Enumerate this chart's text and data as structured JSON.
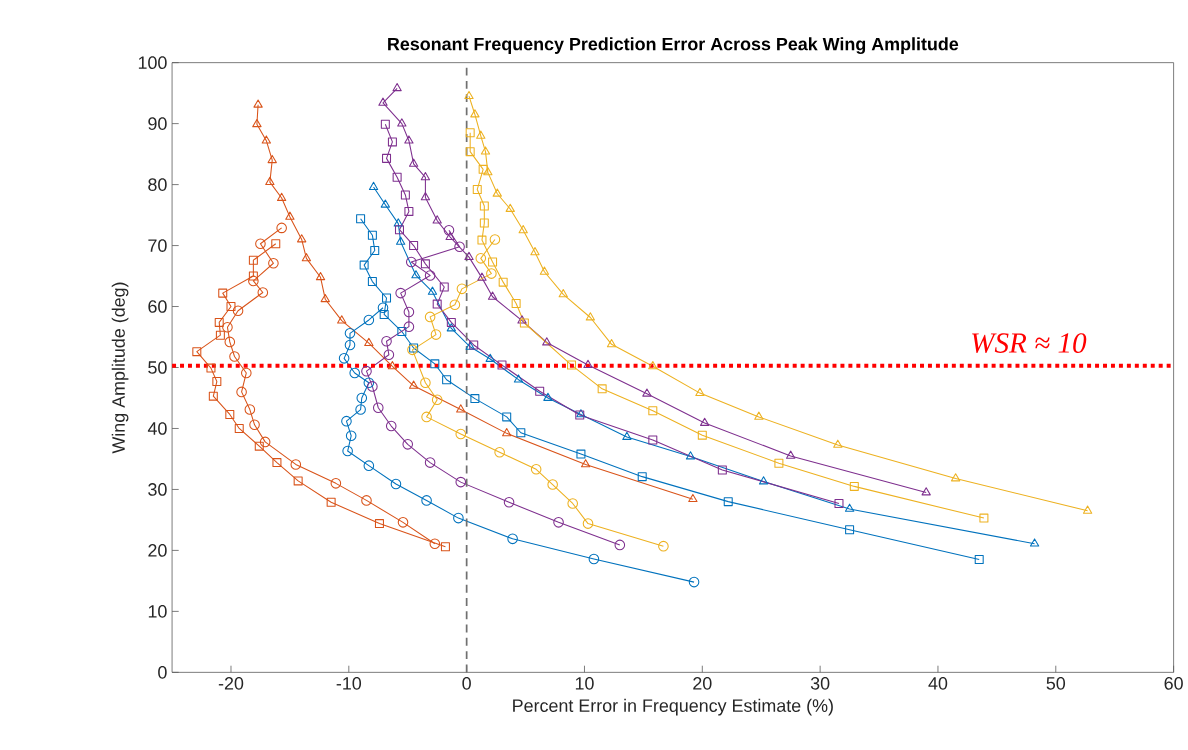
{
  "chart_data": {
    "type": "line",
    "title": "Resonant Frequency Prediction Error Across Peak Wing Amplitude",
    "xlabel": "Percent Error in Frequency Estimate (%)",
    "ylabel": "Wing Amplitude (deg)",
    "xlim": [
      -25,
      60
    ],
    "ylim": [
      0,
      100
    ],
    "xticks": [
      -20,
      -10,
      0,
      10,
      20,
      30,
      40,
      50,
      60
    ],
    "yticks": [
      0,
      10,
      20,
      30,
      40,
      50,
      60,
      70,
      80,
      90,
      100
    ],
    "series": [
      {
        "color": "#D95319",
        "marker": "triangle",
        "x": [
          -17.7,
          -17.8,
          -17.0,
          -16.5,
          -16.7,
          -15.7,
          -15.0,
          -14.0,
          -13.6,
          -12.4,
          -12.0,
          -10.6,
          -8.3,
          -6.3,
          -4.5,
          -0.5,
          3.4,
          10.1,
          19.2
        ],
        "values": [
          93.1,
          89.9,
          87.2,
          84.0,
          80.4,
          77.8,
          74.7,
          71.0,
          67.9,
          64.8,
          61.2,
          57.7,
          54.0,
          50.2,
          47.0,
          43.1,
          39.2,
          34.1,
          28.4
        ]
      },
      {
        "color": "#D95319",
        "marker": "square",
        "x": [
          -16.2,
          -18.1,
          -18.1,
          -20.7,
          -20.0,
          -21.0,
          -20.9,
          -22.9,
          -21.7,
          -21.2,
          -21.5,
          -20.1,
          -19.3,
          -17.6,
          -16.1,
          -14.3,
          -11.5,
          -7.4,
          -1.8
        ],
        "values": [
          70.3,
          67.6,
          65.0,
          62.2,
          60.0,
          57.4,
          55.3,
          52.6,
          49.9,
          47.7,
          45.3,
          42.3,
          40.0,
          37.1,
          34.4,
          31.4,
          27.9,
          24.4,
          20.6
        ]
      },
      {
        "color": "#D95319",
        "marker": "circle",
        "x": [
          -15.7,
          -17.5,
          -16.4,
          -18.1,
          -17.3,
          -19.4,
          -20.3,
          -20.1,
          -19.7,
          -18.7,
          -19.1,
          -18.4,
          -18.0,
          -17.1,
          -14.5,
          -11.1,
          -8.5,
          -5.4,
          -2.7
        ],
        "values": [
          72.9,
          70.3,
          67.1,
          64.2,
          62.3,
          59.3,
          56.6,
          54.2,
          51.8,
          49.1,
          46.0,
          43.1,
          40.6,
          37.8,
          34.1,
          31.0,
          28.2,
          24.6,
          21.1
        ]
      },
      {
        "color": "#0072BD",
        "marker": "square",
        "x": [
          -9.0,
          -8.0,
          -7.8,
          -8.7,
          -8.0,
          -6.8,
          -7.0,
          -5.5,
          -4.5,
          -2.7,
          -1.7,
          0.7,
          3.4,
          4.6,
          9.7,
          14.9,
          22.2,
          32.5,
          43.5
        ],
        "values": [
          74.4,
          71.7,
          69.2,
          66.8,
          64.1,
          61.4,
          58.7,
          55.9,
          53.2,
          50.6,
          48.0,
          44.9,
          41.9,
          39.3,
          35.8,
          32.1,
          28.0,
          23.4,
          18.5
        ]
      },
      {
        "color": "#0072BD",
        "marker": "triangle",
        "x": [
          -7.9,
          -6.9,
          -5.8,
          -5.6,
          -4.3,
          -2.9,
          -1.3,
          0.3,
          2.0,
          4.4,
          6.9,
          9.7,
          13.6,
          19.0,
          25.2,
          32.5,
          48.2
        ],
        "values": [
          79.6,
          76.7,
          73.6,
          70.6,
          65.1,
          62.4,
          56.4,
          53.4,
          51.4,
          48.0,
          45.0,
          42.3,
          38.6,
          35.4,
          31.3,
          26.8,
          21.1
        ]
      },
      {
        "color": "#0072BD",
        "marker": "circle",
        "x": [
          -7.1,
          -8.3,
          -9.9,
          -9.9,
          -10.4,
          -9.5,
          -8.3,
          -8.9,
          -9.0,
          -10.2,
          -9.8,
          -10.1,
          -8.3,
          -6.0,
          -3.4,
          -0.7,
          3.9,
          10.8,
          19.3
        ],
        "values": [
          59.8,
          57.8,
          55.6,
          53.7,
          51.5,
          49.1,
          47.5,
          45.0,
          43.1,
          41.2,
          38.8,
          36.3,
          33.9,
          30.9,
          28.2,
          25.3,
          21.9,
          18.6,
          14.8
        ]
      },
      {
        "color": "#7E2F8E",
        "marker": "triangle",
        "x": [
          -5.9,
          -7.1,
          -5.5,
          -4.9,
          -4.5,
          -3.5,
          -3.5,
          -2.5,
          -1.4,
          0.2,
          1.3,
          2.2,
          4.7,
          6.8,
          10.3,
          15.3,
          20.2,
          27.5,
          39.0
        ],
        "values": [
          95.8,
          93.4,
          90.0,
          87.2,
          83.4,
          81.2,
          77.9,
          74.1,
          71.4,
          68.1,
          64.7,
          61.6,
          57.7,
          54.1,
          50.4,
          45.7,
          40.9,
          35.5,
          29.5
        ]
      },
      {
        "color": "#7E2F8E",
        "marker": "square",
        "x": [
          -6.9,
          -6.3,
          -6.8,
          -5.9,
          -5.2,
          -4.9,
          -5.7,
          -4.5,
          -3.5,
          -1.9,
          -2.5,
          -1.3,
          0.6,
          3.0,
          6.2,
          9.6,
          15.8,
          21.7,
          31.6
        ],
        "values": [
          89.9,
          87.0,
          84.3,
          81.2,
          78.3,
          75.6,
          72.6,
          70.0,
          67.0,
          63.2,
          60.4,
          57.4,
          53.7,
          50.4,
          46.1,
          42.2,
          38.1,
          33.2,
          27.7
        ]
      },
      {
        "color": "#7E2F8E",
        "marker": "circle",
        "x": [
          -1.5,
          -0.6,
          -4.7,
          -3.1,
          -5.6,
          -4.9,
          -4.9,
          -6.8,
          -6.6,
          -8.5,
          -8.0,
          -7.5,
          -6.4,
          -5.0,
          -3.1,
          -0.5,
          3.6,
          7.8,
          13.0
        ],
        "values": [
          72.5,
          69.8,
          67.3,
          65.1,
          62.2,
          59.1,
          56.7,
          54.3,
          52.1,
          49.4,
          46.9,
          43.4,
          40.4,
          37.4,
          34.4,
          31.2,
          27.9,
          24.6,
          20.9
        ]
      },
      {
        "color": "#EDB120",
        "marker": "triangle",
        "x": [
          0.2,
          0.7,
          1.2,
          1.6,
          1.8,
          2.6,
          3.7,
          4.8,
          5.8,
          6.6,
          8.2,
          10.5,
          12.3,
          15.8,
          19.8,
          24.8,
          31.5,
          41.5,
          52.7
        ],
        "values": [
          94.5,
          91.5,
          88.0,
          85.4,
          82.0,
          78.5,
          76.0,
          72.5,
          68.9,
          65.7,
          62.0,
          58.2,
          53.8,
          50.2,
          45.8,
          41.9,
          37.3,
          31.8,
          26.5
        ]
      },
      {
        "color": "#EDB120",
        "marker": "square",
        "x": [
          0.3,
          0.3,
          1.4,
          0.9,
          1.5,
          1.5,
          1.3,
          2.2,
          3.1,
          4.2,
          4.9,
          8.9,
          11.5,
          15.8,
          20.0,
          26.5,
          32.9,
          43.9
        ],
        "values": [
          88.5,
          85.4,
          82.5,
          79.2,
          76.5,
          73.7,
          70.9,
          67.3,
          64.0,
          60.5,
          57.3,
          50.4,
          46.5,
          42.9,
          38.9,
          34.3,
          30.5,
          25.3
        ]
      },
      {
        "color": "#EDB120",
        "marker": "circle",
        "x": [
          2.4,
          1.2,
          2.1,
          -0.4,
          -1.0,
          -3.1,
          -2.6,
          -4.6,
          -3.5,
          -2.5,
          -3.4,
          -0.5,
          2.8,
          5.9,
          7.3,
          9.0,
          10.3,
          16.7
        ],
        "values": [
          71.0,
          67.9,
          65.4,
          62.9,
          60.3,
          58.3,
          55.4,
          52.9,
          47.5,
          44.7,
          41.9,
          39.1,
          36.1,
          33.3,
          30.8,
          27.7,
          24.4,
          20.7
        ]
      }
    ],
    "ref_lines": [
      {
        "axis": "x",
        "value": 0,
        "color": "#707070",
        "line_style": "dashed"
      },
      {
        "axis": "y",
        "value": 50.3,
        "color": "#FF0000",
        "line_style": "dotted",
        "label": "WSR ≈ 10"
      }
    ]
  }
}
